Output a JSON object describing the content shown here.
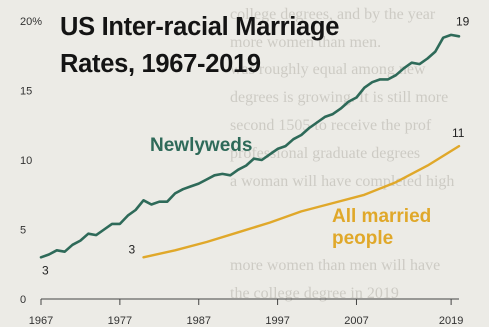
{
  "chart_data": {
    "type": "line",
    "title": "US Inter-racial Marriage Rates, 1967-2019",
    "y_unit": "%",
    "xlim": [
      1967,
      2020
    ],
    "ylim": [
      0,
      20
    ],
    "x_ticks": [
      1967,
      1977,
      1987,
      1997,
      2007,
      2019
    ],
    "y_ticks": [
      {
        "value": 0,
        "label": "0"
      },
      {
        "value": 5,
        "label": "5"
      },
      {
        "value": 10,
        "label": "10"
      },
      {
        "value": 15,
        "label": "15"
      },
      {
        "value": 20,
        "label": "20%"
      }
    ],
    "grid": false,
    "legend": "inline",
    "series": [
      {
        "name": "Newlyweds",
        "color": "#2e6a59",
        "start_label": "3",
        "end_label": "19",
        "points": [
          [
            1967,
            3.0
          ],
          [
            1968,
            3.2
          ],
          [
            1969,
            3.5
          ],
          [
            1970,
            3.4
          ],
          [
            1971,
            3.9
          ],
          [
            1972,
            4.2
          ],
          [
            1973,
            4.7
          ],
          [
            1974,
            4.6
          ],
          [
            1975,
            5.0
          ],
          [
            1976,
            5.4
          ],
          [
            1977,
            5.4
          ],
          [
            1978,
            6.0
          ],
          [
            1979,
            6.4
          ],
          [
            1980,
            7.1
          ],
          [
            1981,
            6.8
          ],
          [
            1982,
            7.0
          ],
          [
            1983,
            7.0
          ],
          [
            1984,
            7.6
          ],
          [
            1985,
            7.9
          ],
          [
            1986,
            8.1
          ],
          [
            1987,
            8.3
          ],
          [
            1988,
            8.6
          ],
          [
            1989,
            8.9
          ],
          [
            1990,
            9.0
          ],
          [
            1991,
            8.9
          ],
          [
            1992,
            9.3
          ],
          [
            1993,
            9.6
          ],
          [
            1994,
            10.1
          ],
          [
            1995,
            10.0
          ],
          [
            1996,
            10.4
          ],
          [
            1997,
            10.8
          ],
          [
            1998,
            11.0
          ],
          [
            1999,
            11.5
          ],
          [
            2000,
            11.8
          ],
          [
            2001,
            12.3
          ],
          [
            2002,
            12.7
          ],
          [
            2003,
            13.1
          ],
          [
            2004,
            13.3
          ],
          [
            2005,
            13.7
          ],
          [
            2006,
            14.2
          ],
          [
            2007,
            14.5
          ],
          [
            2008,
            15.2
          ],
          [
            2009,
            15.6
          ],
          [
            2010,
            15.8
          ],
          [
            2011,
            15.8
          ],
          [
            2012,
            16.1
          ],
          [
            2013,
            16.6
          ],
          [
            2014,
            17.0
          ],
          [
            2015,
            16.9
          ],
          [
            2016,
            17.3
          ],
          [
            2017,
            17.8
          ],
          [
            2018,
            18.8
          ],
          [
            2019,
            19.0
          ],
          [
            2020,
            18.9
          ]
        ]
      },
      {
        "name": "All married people",
        "label_lines": [
          "All married",
          "people"
        ],
        "color": "#e0a82a",
        "start_label": "3",
        "end_label": "11",
        "points": [
          [
            1980,
            3.0
          ],
          [
            1984,
            3.5
          ],
          [
            1988,
            4.1
          ],
          [
            1992,
            4.8
          ],
          [
            1996,
            5.5
          ],
          [
            2000,
            6.3
          ],
          [
            2004,
            6.9
          ],
          [
            2008,
            7.5
          ],
          [
            2012,
            8.4
          ],
          [
            2016,
            9.6
          ],
          [
            2020,
            11.0
          ]
        ]
      }
    ]
  },
  "background_text": [
    "college degrees, and by the year",
    "more women than men.",
    "was roughly equal among new",
    "degrees is growing. It is still more",
    "second 1505 to receive the prof",
    "professional graduate degrees",
    "a woman will have completed high",
    "more women than men will have",
    "the college degree in 2019"
  ]
}
